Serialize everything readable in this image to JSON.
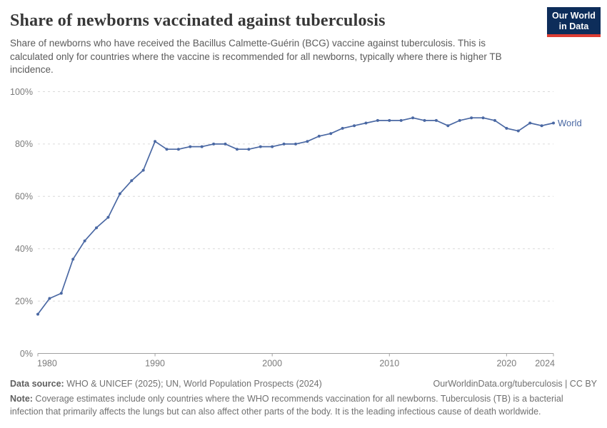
{
  "header": {
    "title": "Share of newborns vaccinated against tuberculosis",
    "subtitle": "Share of newborns who have received the Bacillus Calmette-Guérin (BCG) vaccine against tuberculosis. This is calculated only for countries where the vaccine is recommended for all newborns, typically where there is higher TB incidence.",
    "logo": {
      "line1": "Our World",
      "line2": "in Data"
    }
  },
  "chart_data": {
    "type": "line",
    "title": "Share of newborns vaccinated against tuberculosis",
    "xlabel": "",
    "ylabel": "",
    "ylim": [
      0,
      100
    ],
    "yticks": [
      0,
      20,
      40,
      60,
      80,
      100
    ],
    "ytick_suffix": "%",
    "xticks": [
      1980,
      1990,
      2000,
      2010,
      2020,
      2024
    ],
    "grid": "horizontal-dashed",
    "legend_position": "end-of-line",
    "x": [
      1980,
      1981,
      1982,
      1983,
      1984,
      1985,
      1986,
      1987,
      1988,
      1989,
      1990,
      1991,
      1992,
      1993,
      1994,
      1995,
      1996,
      1997,
      1998,
      1999,
      2000,
      2001,
      2002,
      2003,
      2004,
      2005,
      2006,
      2007,
      2008,
      2009,
      2010,
      2011,
      2012,
      2013,
      2014,
      2015,
      2016,
      2017,
      2018,
      2019,
      2020,
      2021,
      2022,
      2023,
      2024
    ],
    "series": [
      {
        "name": "World",
        "values": [
          15,
          21,
          23,
          36,
          43,
          48,
          52,
          61,
          66,
          70,
          81,
          78,
          78,
          79,
          79,
          80,
          80,
          78,
          78,
          79,
          79,
          80,
          80,
          81,
          83,
          84,
          86,
          87,
          88,
          89,
          89,
          89,
          90,
          89,
          89,
          87,
          89,
          90,
          90,
          89,
          86,
          85,
          88,
          87,
          88
        ]
      }
    ]
  },
  "colors": {
    "line": "#4a68a3",
    "grid": "#dadada",
    "axis": "#a0a0a0",
    "tick_label": "#7b7b7b",
    "logo_navy": "#0d2d5a",
    "logo_red": "#dc3d33"
  },
  "footer": {
    "datasource_label": "Data source:",
    "datasource_text": " WHO & UNICEF (2025); UN, World Population Prospects (2024)",
    "link_text": "OurWorldinData.org/tuberculosis | CC BY",
    "note_label": "Note:",
    "note_text": " Coverage estimates include only countries where the WHO recommends vaccination for all newborns. Tuberculosis (TB) is a bacterial infection that primarily affects the lungs but can also affect other parts of the body. It is the leading infectious cause of death worldwide."
  }
}
